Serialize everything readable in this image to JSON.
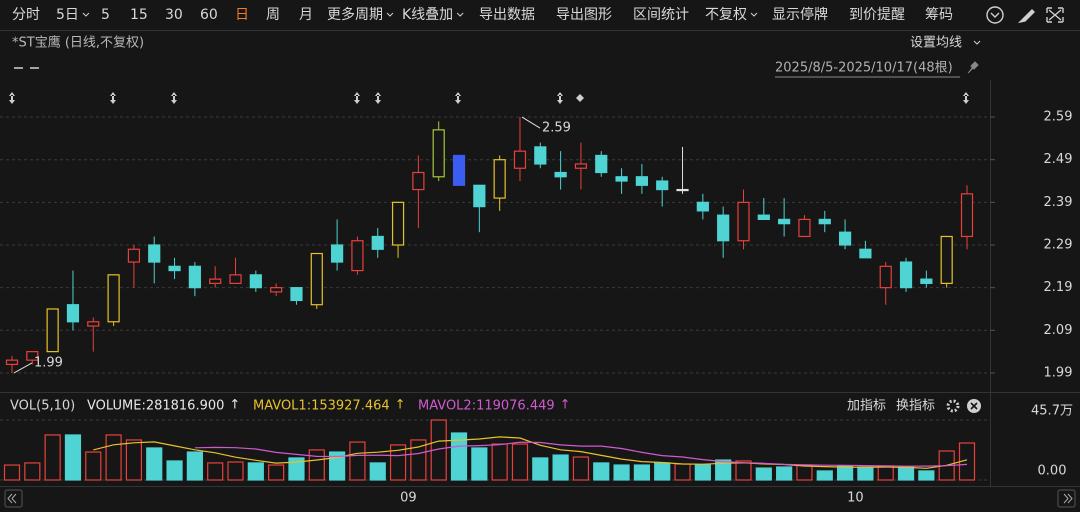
{
  "toolbar": {
    "items": [
      {
        "label": "分时"
      },
      {
        "label": "5日",
        "dropdown": true
      },
      {
        "label": "5"
      },
      {
        "label": "15"
      },
      {
        "label": "30"
      },
      {
        "label": "60"
      },
      {
        "label": "日",
        "color": "#f07d2a"
      },
      {
        "label": "周"
      },
      {
        "label": "月"
      },
      {
        "label": "更多周期",
        "dropdown": true
      },
      {
        "label": "K线叠加",
        "dropdown": true
      },
      {
        "label": "导出数据"
      },
      {
        "label": "导出图形"
      },
      {
        "label": "区间统计"
      },
      {
        "label": "不复权",
        "dropdown": true
      },
      {
        "label": "显示停牌"
      },
      {
        "label": "到价提醒"
      },
      {
        "label": "筹码"
      }
    ]
  },
  "ma_settings": "设置均线",
  "indicator_buttons": [
    "加指标",
    "换指标"
  ],
  "chart_data": {
    "type": "candlestick",
    "title": "*ST宝鹰 (日线,不复权)",
    "range_label": "2025/8/5-2025/10/17(48根)",
    "categories": [
      null,
      null,
      null,
      null,
      null,
      null,
      null,
      null,
      null,
      null,
      null,
      null,
      null,
      null,
      null,
      null,
      null,
      null,
      null,
      null,
      "09",
      null,
      null,
      null,
      null,
      null,
      null,
      null,
      null,
      null,
      null,
      null,
      null,
      null,
      null,
      null,
      null,
      null,
      null,
      null,
      null,
      null,
      "10",
      null,
      null,
      null,
      null,
      null
    ],
    "open": [
      2.01,
      2.02,
      2.04,
      2.15,
      2.1,
      2.11,
      2.25,
      2.29,
      2.24,
      2.24,
      2.2,
      2.2,
      2.22,
      2.18,
      2.19,
      2.15,
      2.29,
      2.23,
      2.31,
      2.29,
      2.42,
      2.45,
      2.5,
      2.43,
      2.4,
      2.47,
      2.52,
      2.46,
      2.47,
      2.5,
      2.45,
      2.45,
      2.44,
      2.42,
      2.39,
      2.36,
      2.3,
      2.36,
      2.35,
      2.31,
      2.35,
      2.32,
      2.28,
      2.19,
      2.25,
      2.21,
      2.2,
      2.31
    ],
    "high": [
      2.03,
      2.04,
      2.14,
      2.23,
      2.12,
      2.22,
      2.29,
      2.31,
      2.26,
      2.25,
      2.24,
      2.26,
      2.23,
      2.2,
      2.19,
      2.27,
      2.35,
      2.31,
      2.33,
      2.39,
      2.5,
      2.58,
      2.5,
      2.43,
      2.5,
      2.59,
      2.53,
      2.51,
      2.53,
      2.51,
      2.47,
      2.48,
      2.45,
      2.52,
      2.41,
      2.38,
      2.42,
      2.4,
      2.4,
      2.36,
      2.37,
      2.35,
      2.3,
      2.25,
      2.26,
      2.23,
      2.31,
      2.43
    ],
    "low": [
      1.99,
      2.01,
      2.04,
      2.09,
      2.04,
      2.1,
      2.19,
      2.2,
      2.21,
      2.17,
      2.19,
      2.2,
      2.18,
      2.17,
      2.15,
      2.14,
      2.23,
      2.22,
      2.26,
      2.26,
      2.33,
      2.44,
      2.43,
      2.32,
      2.37,
      2.44,
      2.47,
      2.42,
      2.42,
      2.45,
      2.41,
      2.41,
      2.38,
      2.41,
      2.35,
      2.26,
      2.28,
      2.35,
      2.31,
      2.31,
      2.32,
      2.28,
      2.26,
      2.15,
      2.18,
      2.19,
      2.19,
      2.28
    ],
    "close": [
      2.02,
      2.04,
      2.14,
      2.11,
      2.11,
      2.22,
      2.28,
      2.25,
      2.23,
      2.19,
      2.21,
      2.22,
      2.19,
      2.19,
      2.16,
      2.27,
      2.25,
      2.3,
      2.28,
      2.39,
      2.46,
      2.56,
      2.43,
      2.38,
      2.49,
      2.51,
      2.48,
      2.45,
      2.48,
      2.46,
      2.44,
      2.43,
      2.42,
      2.42,
      2.37,
      2.3,
      2.39,
      2.35,
      2.34,
      2.35,
      2.34,
      2.29,
      2.26,
      2.24,
      2.19,
      2.2,
      2.31,
      2.41
    ],
    "colors": [
      "#e8413c",
      "#e8413c",
      "#e6c229",
      "#4fd3d3",
      "#e8413c",
      "#e6c229",
      "#e8413c",
      "#4fd3d3",
      "#4fd3d3",
      "#4fd3d3",
      "#e8413c",
      "#e8413c",
      "#4fd3d3",
      "#e8413c",
      "#4fd3d3",
      "#e6c229",
      "#4fd3d3",
      "#e8413c",
      "#4fd3d3",
      "#e6c229",
      "#e8413c",
      "#a5c83a",
      "#3a5cf0",
      "#4fd3d3",
      "#e6c229",
      "#e8413c",
      "#4fd3d3",
      "#4fd3d3",
      "#e8413c",
      "#4fd3d3",
      "#4fd3d3",
      "#4fd3d3",
      "#4fd3d3",
      "#e0e0e0",
      "#4fd3d3",
      "#4fd3d3",
      "#e8413c",
      "#4fd3d3",
      "#4fd3d3",
      "#e8413c",
      "#4fd3d3",
      "#4fd3d3",
      "#4fd3d3",
      "#e8413c",
      "#4fd3d3",
      "#4fd3d3",
      "#e6c229",
      "#e8413c"
    ],
    "up_color": "#e8413c",
    "down_color": "#4fd3d3",
    "ylim": [
      1.95,
      2.63
    ],
    "yticks": [
      1.99,
      2.09,
      2.19,
      2.29,
      2.39,
      2.49,
      2.59
    ],
    "grid": true,
    "annotations": [
      2.59,
      1.99
    ],
    "volume": {
      "type": "bar",
      "label": "VOL(5,10)",
      "readout": [
        "VOLUME:281816.900",
        "MAVOL1:153927.464",
        "MAVOL2:119076.449"
      ],
      "arrows": [
        "↑",
        "↑",
        "↑"
      ],
      "values": [
        114000,
        130000,
        343000,
        343000,
        213000,
        343000,
        305000,
        244000,
        145000,
        213000,
        130000,
        137000,
        130000,
        114000,
        168000,
        229000,
        213000,
        289000,
        130000,
        267000,
        305000,
        457000,
        358000,
        244000,
        274000,
        274000,
        168000,
        190000,
        175000,
        130000,
        114000,
        114000,
        130000,
        122000,
        114000,
        152000,
        145000,
        91000,
        99000,
        114000,
        69000,
        107000,
        99000,
        107000,
        99000,
        69000,
        221000,
        281816.9
      ],
      "series": [
        {
          "color": "#e6c229",
          "values": [
            null,
            null,
            null,
            null,
            229000,
            268000,
            283000,
            290000,
            260000,
            230000,
            207000,
            174000,
            150000,
            129000,
            136000,
            152000,
            171000,
            203000,
            212000,
            226000,
            251000,
            296000,
            304000,
            312000,
            328000,
            320000,
            264000,
            230000,
            216000,
            187000,
            159000,
            140000,
            133000,
            122000,
            120000,
            127000,
            131000,
            123000,
            118000,
            107000,
            102000,
            98000,
            97000,
            99000,
            96000,
            89000,
            112000,
            153927.464
          ]
        },
        {
          "color": "#d05ad0",
          "values": [
            null,
            null,
            null,
            null,
            null,
            null,
            null,
            null,
            null,
            245000,
            248000,
            246000,
            236000,
            210000,
            195000,
            180000,
            179000,
            187000,
            189000,
            186000,
            202000,
            236000,
            258000,
            262000,
            269000,
            288000,
            286000,
            267000,
            258000,
            258000,
            240000,
            210000,
            186000,
            175000,
            155000,
            140000,
            132000,
            127000,
            119000,
            115000,
            113000,
            112000,
            110000,
            107000,
            105000,
            106000,
            109000,
            119076.449
          ]
        }
      ],
      "ylim": [
        0,
        457000
      ],
      "yticks": [
        {
          "value": 0,
          "label": "0.00"
        },
        {
          "value": 457000,
          "label": "45.7万"
        }
      ]
    }
  }
}
